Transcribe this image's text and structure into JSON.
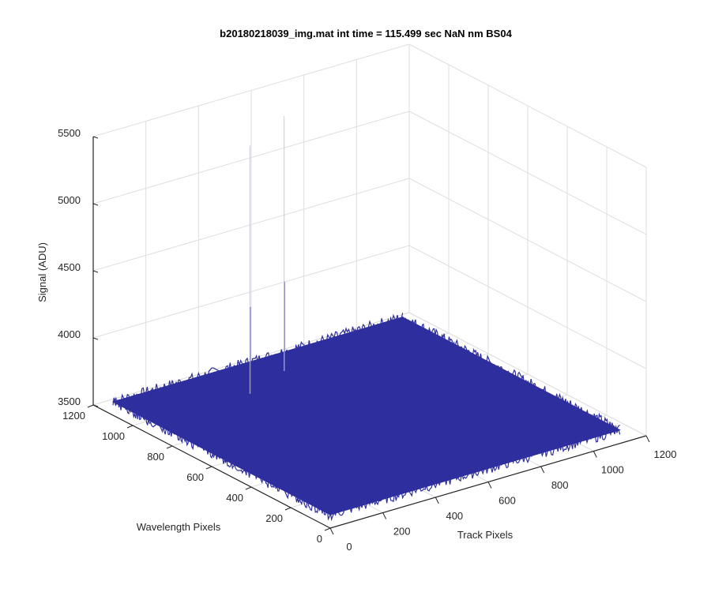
{
  "chart_data": {
    "type": "surface",
    "title": "b20180218039_img.mat int time = 115.499 sec  NaN nm BS04",
    "xlabel": "Track Pixels",
    "ylabel": "Wavelength Pixels",
    "zlabel": "Signal (ADU)",
    "xlim": [
      0,
      1200
    ],
    "ylim": [
      0,
      1200
    ],
    "zlim": [
      3500,
      5500
    ],
    "xticks": [
      "0",
      "200",
      "400",
      "600",
      "800",
      "1000",
      "1200"
    ],
    "yticks": [
      "0",
      "200",
      "400",
      "600",
      "800",
      "1000",
      "1200"
    ],
    "zticks": [
      "3500",
      "4000",
      "4500",
      "5000",
      "5500"
    ],
    "grid": true,
    "surface": {
      "color": "#2e2e9e",
      "x_range": [
        0,
        1100
      ],
      "y_range": [
        0,
        1100
      ],
      "baseline_signal": 3600,
      "noise_amplitude": 40,
      "spikes": [
        {
          "x": 370,
          "y": 900,
          "signal": 5450
        },
        {
          "x": 560,
          "y": 980,
          "signal": 5500
        }
      ]
    }
  }
}
